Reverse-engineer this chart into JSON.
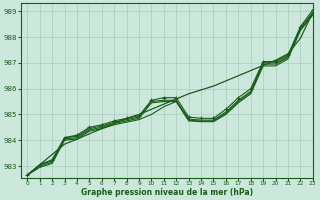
{
  "title": "Graphe pression niveau de la mer (hPa)",
  "background_color": "#cce8dc",
  "grid_color": "#aaccbb",
  "line_color": "#1a5c1a",
  "xlim": [
    -0.5,
    23
  ],
  "ylim": [
    982.55,
    989.3
  ],
  "yticks": [
    983,
    984,
    985,
    986,
    987,
    988,
    989
  ],
  "xticks": [
    0,
    1,
    2,
    3,
    4,
    5,
    6,
    7,
    8,
    9,
    10,
    11,
    12,
    13,
    14,
    15,
    16,
    17,
    18,
    19,
    20,
    21,
    22,
    23
  ],
  "hours": [
    0,
    1,
    2,
    3,
    4,
    5,
    6,
    7,
    8,
    9,
    10,
    11,
    12,
    13,
    14,
    15,
    16,
    17,
    18,
    19,
    20,
    21,
    22,
    23
  ],
  "line_straight": [
    982.65,
    983.05,
    983.45,
    983.85,
    984.04,
    984.25,
    984.45,
    984.65,
    984.85,
    985.0,
    985.2,
    985.4,
    985.6,
    985.8,
    985.95,
    986.1,
    986.3,
    986.5,
    986.7,
    986.9,
    987.1,
    987.35,
    987.95,
    988.95
  ],
  "line_upper": [
    982.65,
    983.05,
    983.25,
    984.1,
    984.2,
    984.5,
    984.6,
    984.75,
    984.85,
    984.95,
    985.55,
    985.65,
    985.65,
    984.9,
    984.85,
    984.85,
    985.2,
    985.65,
    986.0,
    987.05,
    987.05,
    987.3,
    988.4,
    989.05
  ],
  "line_mid1": [
    982.65,
    983.05,
    983.2,
    984.1,
    984.15,
    984.45,
    984.55,
    984.7,
    984.8,
    984.9,
    985.5,
    985.55,
    985.55,
    984.82,
    984.78,
    984.78,
    985.1,
    985.55,
    985.9,
    987.0,
    987.0,
    987.25,
    988.35,
    988.95
  ],
  "line_mid2": [
    982.65,
    983.0,
    983.15,
    984.05,
    984.1,
    984.4,
    984.5,
    984.65,
    984.75,
    984.85,
    985.45,
    985.5,
    985.5,
    984.78,
    984.74,
    984.74,
    985.05,
    985.5,
    985.85,
    986.95,
    986.95,
    987.2,
    988.3,
    988.9
  ],
  "line_lower": [
    982.65,
    982.95,
    983.1,
    984.0,
    984.05,
    984.35,
    984.45,
    984.6,
    984.7,
    984.8,
    985.0,
    985.3,
    985.5,
    984.75,
    984.72,
    984.72,
    985.0,
    985.45,
    985.8,
    986.88,
    986.88,
    987.15,
    988.25,
    988.85
  ]
}
